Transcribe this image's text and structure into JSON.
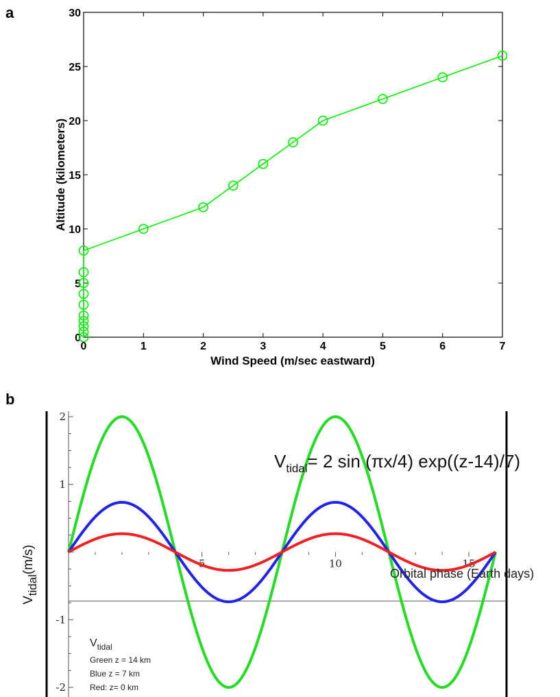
{
  "panels": {
    "a_label": "a",
    "b_label": "b"
  },
  "chart_data": [
    {
      "type": "line",
      "xlabel": "Wind Speed (m/sec eastward)",
      "ylabel": "Altitude (kilometers)",
      "xlim": [
        0,
        7
      ],
      "ylim": [
        0,
        30
      ],
      "xticks": [
        "0",
        "1",
        "2",
        "3",
        "4",
        "5",
        "6",
        "7"
      ],
      "yticks": [
        "0",
        "5",
        "10",
        "15",
        "20",
        "25",
        "30"
      ],
      "marker": "circle",
      "color": "#00ee00",
      "grid": false,
      "x": [
        0,
        0,
        0,
        0,
        0,
        0,
        0,
        0,
        0,
        0,
        1,
        2,
        2.5,
        3,
        3.5,
        4,
        5,
        6,
        7
      ],
      "y": [
        0,
        0.5,
        1,
        1.5,
        2,
        3,
        4,
        5,
        6,
        8,
        10,
        12,
        14,
        16,
        18,
        20,
        22,
        24,
        26
      ]
    },
    {
      "type": "line",
      "title_main": "V",
      "title_sub": "tidal",
      "title_rest": "= 2 sin (πx/4) exp((z-14)/7)",
      "xlabel": "Orbital phase (Earth days)",
      "ylabel_main": "V",
      "ylabel_sub": "tidal",
      "ylabel_rest": "(m/s)",
      "xlim": [
        0,
        16
      ],
      "ylim": [
        -2,
        2
      ],
      "xticks": [
        "5",
        "10",
        "15"
      ],
      "yticks": [
        "2",
        "1",
        "-1",
        "-2"
      ],
      "legend": {
        "title_main": "V",
        "title_sub": "tidal",
        "lines": [
          "Green z = 14 km",
          "Blue z = 7  km",
          "Red: z= 0 km"
        ]
      },
      "series": [
        {
          "amplitude": 2.0,
          "color": "#22dd22"
        },
        {
          "amplitude": 0.735,
          "color": "#2222ee"
        },
        {
          "amplitude": 0.271,
          "color": "#ee2222"
        }
      ]
    }
  ]
}
